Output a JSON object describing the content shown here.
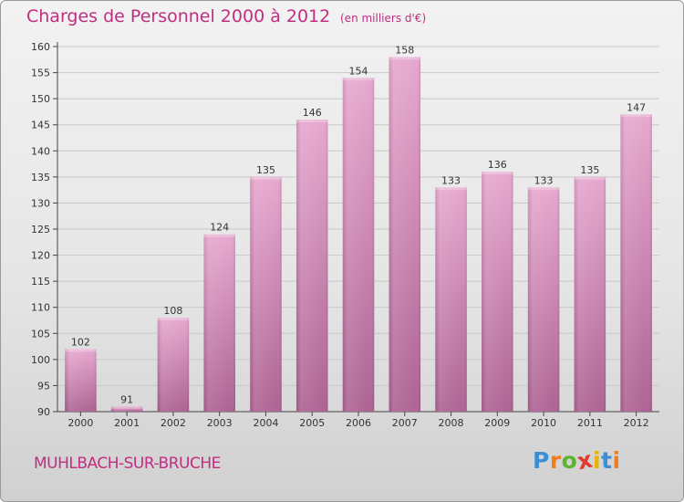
{
  "title": "Charges de Personnel 2000 à 2012",
  "subtitle": "(en milliers d'€)",
  "place": "MUHLBACH-SUR-BRUCHE",
  "logo": {
    "letters": [
      "P",
      "r",
      "o",
      "x",
      "i",
      "t",
      "i"
    ],
    "colors": [
      "#3a8fd6",
      "#f07d1e",
      "#5cb531",
      "#e23a2c",
      "#e8b400",
      "#3a8fd6",
      "#f07d1e"
    ]
  },
  "colors": {
    "title": "#c02e82",
    "bar_top": "#e7a8cf",
    "bar_bottom": "#ad6393",
    "gridline": "#c8c8c8"
  },
  "chart_data": {
    "type": "bar",
    "categories": [
      "2000",
      "2001",
      "2002",
      "2003",
      "2004",
      "2005",
      "2006",
      "2007",
      "2008",
      "2009",
      "2010",
      "2011",
      "2012"
    ],
    "values": [
      102,
      91,
      108,
      124,
      135,
      146,
      154,
      158,
      133,
      136,
      133,
      135,
      147
    ],
    "data_labels": [
      "102",
      "91",
      "108",
      "124",
      "135",
      "146",
      "154",
      "158",
      "133",
      "136",
      "133",
      "135",
      "147"
    ],
    "ylim": [
      90,
      160
    ],
    "yticks": [
      90,
      95,
      100,
      105,
      110,
      115,
      120,
      125,
      130,
      135,
      140,
      145,
      150,
      155,
      160
    ],
    "grid": true,
    "legend": "none"
  }
}
